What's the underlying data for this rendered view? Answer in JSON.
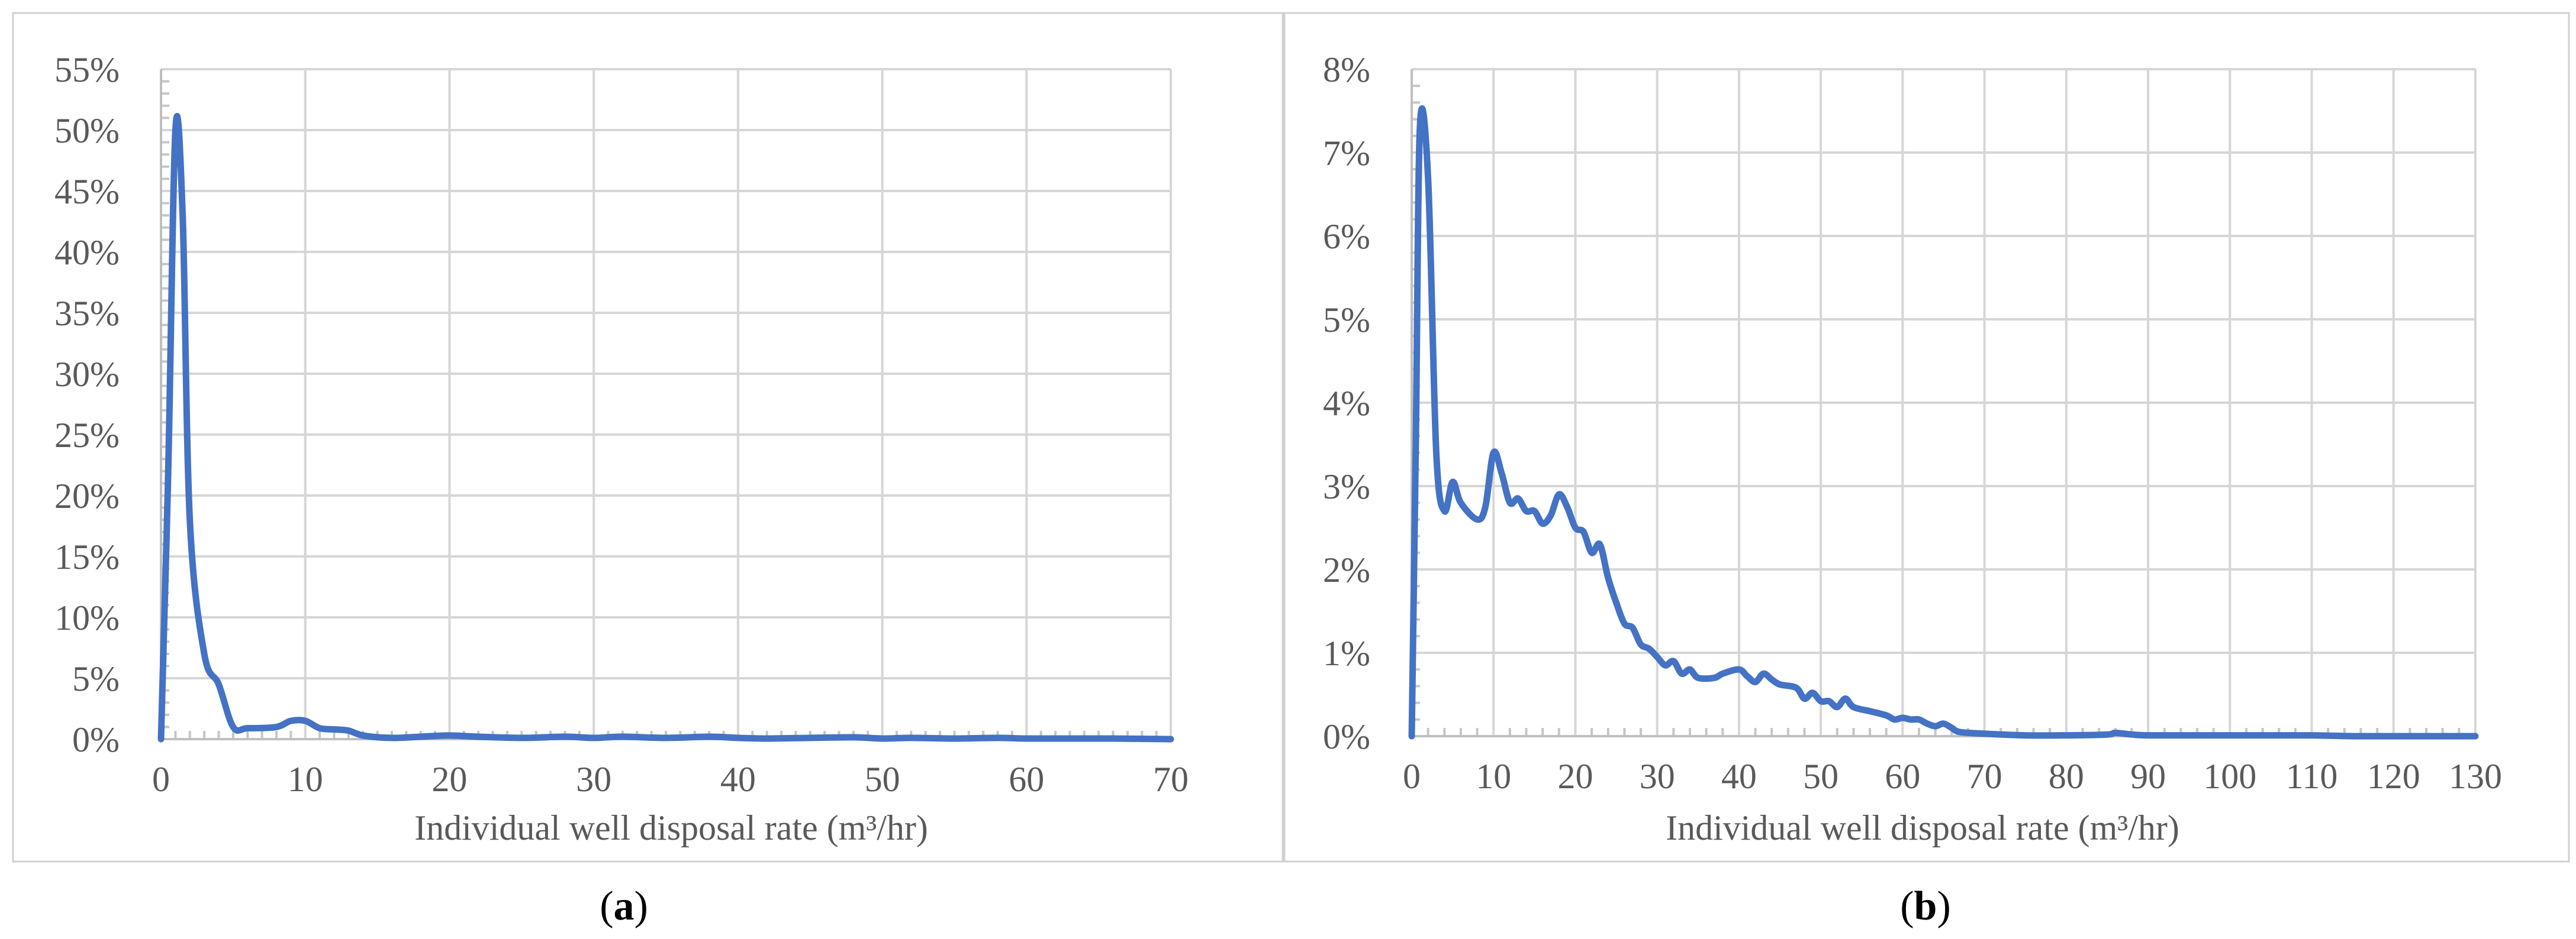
{
  "colors": {
    "series": "#4472c4",
    "grid": "#d6d6d6",
    "text": "#595959"
  },
  "chart_data": [
    {
      "type": "line",
      "panel_label": "a",
      "xlabel": "Individual well disposal rate (m³/hr)",
      "ylabel": "",
      "xlim": [
        0,
        70
      ],
      "ylim": [
        0,
        55
      ],
      "x_ticks": [
        0,
        10,
        20,
        30,
        40,
        50,
        60,
        70
      ],
      "y_ticks": [
        0,
        5,
        10,
        15,
        20,
        25,
        30,
        35,
        40,
        45,
        50,
        55
      ],
      "x_tick_labels": [
        "0",
        "10",
        "20",
        "30",
        "40",
        "50",
        "60",
        "70"
      ],
      "y_tick_labels": [
        "0%",
        "5%",
        "10%",
        "15%",
        "20%",
        "25%",
        "30%",
        "35%",
        "40%",
        "45%",
        "50%",
        "55%"
      ],
      "y_unit": "%",
      "grid": true,
      "legend": "none",
      "series": [
        {
          "color": "#4472c4",
          "points": [
            [
              0,
              0
            ],
            [
              0.5,
              22
            ],
            [
              1,
              50
            ],
            [
              1.5,
              43
            ],
            [
              2,
              18
            ],
            [
              3,
              7
            ],
            [
              4,
              4.5
            ],
            [
              5,
              1
            ],
            [
              6,
              0.9
            ],
            [
              8,
              1
            ],
            [
              9,
              1.5
            ],
            [
              10,
              1.5
            ],
            [
              11,
              0.9
            ],
            [
              12,
              0.8
            ],
            [
              13,
              0.7
            ],
            [
              14,
              0.3
            ],
            [
              16,
              0.1
            ],
            [
              18,
              0.2
            ],
            [
              20,
              0.3
            ],
            [
              22,
              0.2
            ],
            [
              25,
              0.1
            ],
            [
              28,
              0.2
            ],
            [
              30,
              0.1
            ],
            [
              32,
              0.2
            ],
            [
              35,
              0.1
            ],
            [
              38,
              0.2
            ],
            [
              40,
              0.1
            ],
            [
              42,
              0.05
            ],
            [
              45,
              0.1
            ],
            [
              48,
              0.15
            ],
            [
              50,
              0.05
            ],
            [
              52,
              0.1
            ],
            [
              55,
              0.05
            ],
            [
              58,
              0.1
            ],
            [
              60,
              0.05
            ],
            [
              63,
              0.05
            ],
            [
              66,
              0.05
            ],
            [
              70,
              0
            ]
          ]
        }
      ]
    },
    {
      "type": "line",
      "panel_label": "b",
      "xlabel": "Individual well disposal rate (m³/hr)",
      "ylabel": "",
      "xlim": [
        0,
        130
      ],
      "ylim": [
        0,
        8
      ],
      "x_ticks": [
        0,
        10,
        20,
        30,
        40,
        50,
        60,
        70,
        80,
        90,
        100,
        110,
        120,
        130
      ],
      "y_ticks": [
        0,
        1,
        2,
        3,
        4,
        5,
        6,
        7,
        8
      ],
      "x_tick_labels": [
        "0",
        "10",
        "20",
        "30",
        "40",
        "50",
        "60",
        "70",
        "80",
        "90",
        "100",
        "110",
        "120",
        "130"
      ],
      "y_tick_labels": [
        "0%",
        "1%",
        "2%",
        "3%",
        "4%",
        "5%",
        "6%",
        "7%",
        "8%"
      ],
      "y_unit": "%",
      "grid": true,
      "legend": "none",
      "series": [
        {
          "color": "#4472c4",
          "points": [
            [
              0,
              0
            ],
            [
              0.5,
              3.5
            ],
            [
              1,
              7.3
            ],
            [
              2,
              6.7
            ],
            [
              3,
              3.4
            ],
            [
              4,
              2.7
            ],
            [
              5,
              3.05
            ],
            [
              6,
              2.8
            ],
            [
              8,
              2.6
            ],
            [
              9,
              2.75
            ],
            [
              10,
              3.4
            ],
            [
              11,
              3.15
            ],
            [
              12,
              2.8
            ],
            [
              13,
              2.85
            ],
            [
              14,
              2.7
            ],
            [
              15,
              2.7
            ],
            [
              16,
              2.55
            ],
            [
              17,
              2.65
            ],
            [
              18,
              2.9
            ],
            [
              19,
              2.75
            ],
            [
              20,
              2.5
            ],
            [
              21,
              2.45
            ],
            [
              22,
              2.2
            ],
            [
              23,
              2.3
            ],
            [
              24,
              1.9
            ],
            [
              25,
              1.6
            ],
            [
              26,
              1.35
            ],
            [
              27,
              1.3
            ],
            [
              28,
              1.1
            ],
            [
              29,
              1.05
            ],
            [
              30,
              0.95
            ],
            [
              31,
              0.85
            ],
            [
              32,
              0.9
            ],
            [
              33,
              0.75
            ],
            [
              34,
              0.8
            ],
            [
              35,
              0.7
            ],
            [
              37,
              0.7
            ],
            [
              38,
              0.75
            ],
            [
              40,
              0.8
            ],
            [
              41,
              0.72
            ],
            [
              42,
              0.65
            ],
            [
              43,
              0.75
            ],
            [
              44,
              0.68
            ],
            [
              45,
              0.62
            ],
            [
              47,
              0.58
            ],
            [
              48,
              0.45
            ],
            [
              49,
              0.52
            ],
            [
              50,
              0.42
            ],
            [
              51,
              0.42
            ],
            [
              52,
              0.35
            ],
            [
              53,
              0.45
            ],
            [
              54,
              0.35
            ],
            [
              56,
              0.3
            ],
            [
              58,
              0.25
            ],
            [
              59,
              0.2
            ],
            [
              60,
              0.22
            ],
            [
              61,
              0.2
            ],
            [
              62,
              0.2
            ],
            [
              63,
              0.15
            ],
            [
              64,
              0.12
            ],
            [
              65,
              0.15
            ],
            [
              66,
              0.1
            ],
            [
              67,
              0.05
            ],
            [
              70,
              0.03
            ],
            [
              75,
              0.01
            ],
            [
              80,
              0.01
            ],
            [
              85,
              0.02
            ],
            [
              86,
              0.04
            ],
            [
              88,
              0.02
            ],
            [
              90,
              0.01
            ],
            [
              95,
              0.01
            ],
            [
              100,
              0.01
            ],
            [
              105,
              0.01
            ],
            [
              110,
              0.01
            ],
            [
              115,
              0
            ],
            [
              120,
              0
            ],
            [
              130,
              0
            ]
          ]
        }
      ]
    }
  ]
}
